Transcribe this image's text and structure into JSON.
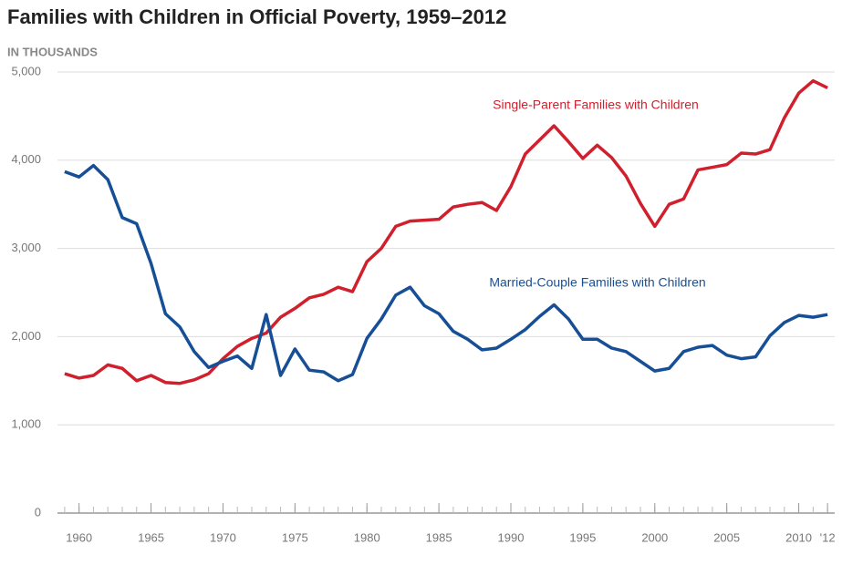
{
  "chart_data": {
    "type": "line",
    "title": "Families with Children in Official Poverty, 1959–2012",
    "y_label": "IN THOUSANDS",
    "x": [
      1959,
      1960,
      1961,
      1962,
      1963,
      1964,
      1965,
      1966,
      1967,
      1968,
      1969,
      1970,
      1971,
      1972,
      1973,
      1974,
      1975,
      1976,
      1977,
      1978,
      1979,
      1980,
      1981,
      1982,
      1983,
      1984,
      1985,
      1986,
      1987,
      1988,
      1989,
      1990,
      1991,
      1992,
      1993,
      1994,
      1995,
      1996,
      1997,
      1998,
      1999,
      2000,
      2001,
      2002,
      2003,
      2004,
      2005,
      2006,
      2007,
      2008,
      2009,
      2010,
      2011,
      2012
    ],
    "series": [
      {
        "name": "Single-Parent Families with Children",
        "color": "#d0202e",
        "values": [
          1580,
          1530,
          1560,
          1680,
          1640,
          1500,
          1560,
          1480,
          1470,
          1510,
          1580,
          1750,
          1890,
          1980,
          2040,
          2220,
          2320,
          2440,
          2480,
          2560,
          2510,
          2850,
          3000,
          3250,
          3310,
          3320,
          3330,
          3470,
          3500,
          3520,
          3430,
          3700,
          4070,
          4230,
          4390,
          4210,
          4020,
          4170,
          4030,
          3820,
          3510,
          3250,
          3500,
          3560,
          3890,
          3920,
          3950,
          4080,
          4070,
          4120,
          4480,
          4760,
          4900,
          4820
        ]
      },
      {
        "name": "Married-Couple Families with Children",
        "color": "#174f96",
        "values": [
          3870,
          3810,
          3940,
          3780,
          3350,
          3280,
          2830,
          2260,
          2110,
          1830,
          1650,
          1720,
          1780,
          1640,
          2250,
          1560,
          1860,
          1620,
          1600,
          1500,
          1570,
          1980,
          2200,
          2470,
          2560,
          2350,
          2260,
          2060,
          1970,
          1850,
          1870,
          1970,
          2080,
          2230,
          2360,
          2200,
          1970,
          1970,
          1870,
          1830,
          1720,
          1610,
          1640,
          1830,
          1880,
          1900,
          1790,
          1750,
          1770,
          2010,
          2160,
          2240,
          2220,
          2250
        ]
      }
    ],
    "xlim": [
      1958.5,
      2012.5
    ],
    "xticks": [
      1960,
      1965,
      1970,
      1975,
      1980,
      1985,
      1990,
      1995,
      2000,
      2005,
      2010,
      {
        "value": 2012,
        "label": "'12"
      }
    ],
    "ylim": [
      0,
      5000
    ],
    "yticks": [
      0,
      {
        "value": 1000,
        "label": "1,000"
      },
      {
        "value": 2000,
        "label": "2,000"
      },
      {
        "value": 3000,
        "label": "3,000"
      },
      {
        "value": 4000,
        "label": "4,000"
      },
      {
        "value": 5000,
        "label": "5,000"
      }
    ],
    "grid": true
  }
}
